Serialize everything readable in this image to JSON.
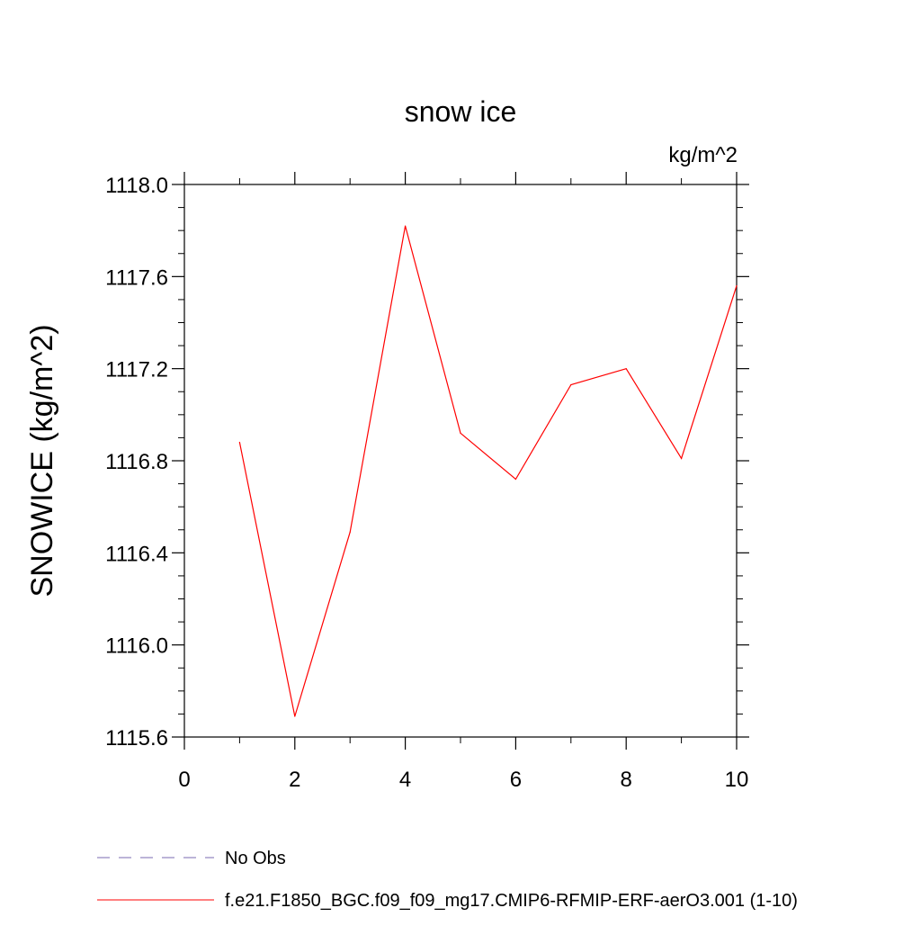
{
  "chart_data": {
    "type": "line",
    "title": "snow ice",
    "units_label": "kg/m^2",
    "ylabel": "SNOWICE  (kg/m^2)",
    "xlabel": "",
    "xlim": [
      0,
      10
    ],
    "ylim": [
      1115.6,
      1118.0
    ],
    "x_ticks": [
      0,
      2,
      4,
      6,
      8,
      10
    ],
    "x_tick_labels": [
      "0",
      "2",
      "4",
      "6",
      "8",
      "10"
    ],
    "y_ticks": [
      1115.6,
      1116.0,
      1116.4,
      1116.8,
      1117.2,
      1117.6,
      1118.0
    ],
    "y_tick_labels": [
      "1115.6",
      "1116.0",
      "1116.4",
      "1116.8",
      "1117.2",
      "1117.6",
      "1118.0"
    ],
    "grid": false,
    "legend_position": "bottom-left",
    "series": [
      {
        "name": "f.e21.F1850_BGC.f09_f09_mg17.CMIP6-RFMIP-ERF-aerO3.001 (1-10)",
        "color": "#ff0000",
        "dash": "solid",
        "x": [
          1,
          2,
          3,
          4,
          5,
          6,
          7,
          8,
          9,
          10
        ],
        "values": [
          1116.88,
          1115.69,
          1116.49,
          1117.82,
          1116.92,
          1116.72,
          1117.13,
          1117.2,
          1116.81,
          1117.56
        ]
      }
    ],
    "legend": [
      {
        "label": "No Obs",
        "color": "#7a6ab0",
        "dash": "dashed"
      },
      {
        "label": "f.e21.F1850_BGC.f09_f09_mg17.CMIP6-RFMIP-ERF-aerO3.001 (1-10)",
        "color": "#ff0000",
        "dash": "solid"
      }
    ]
  }
}
